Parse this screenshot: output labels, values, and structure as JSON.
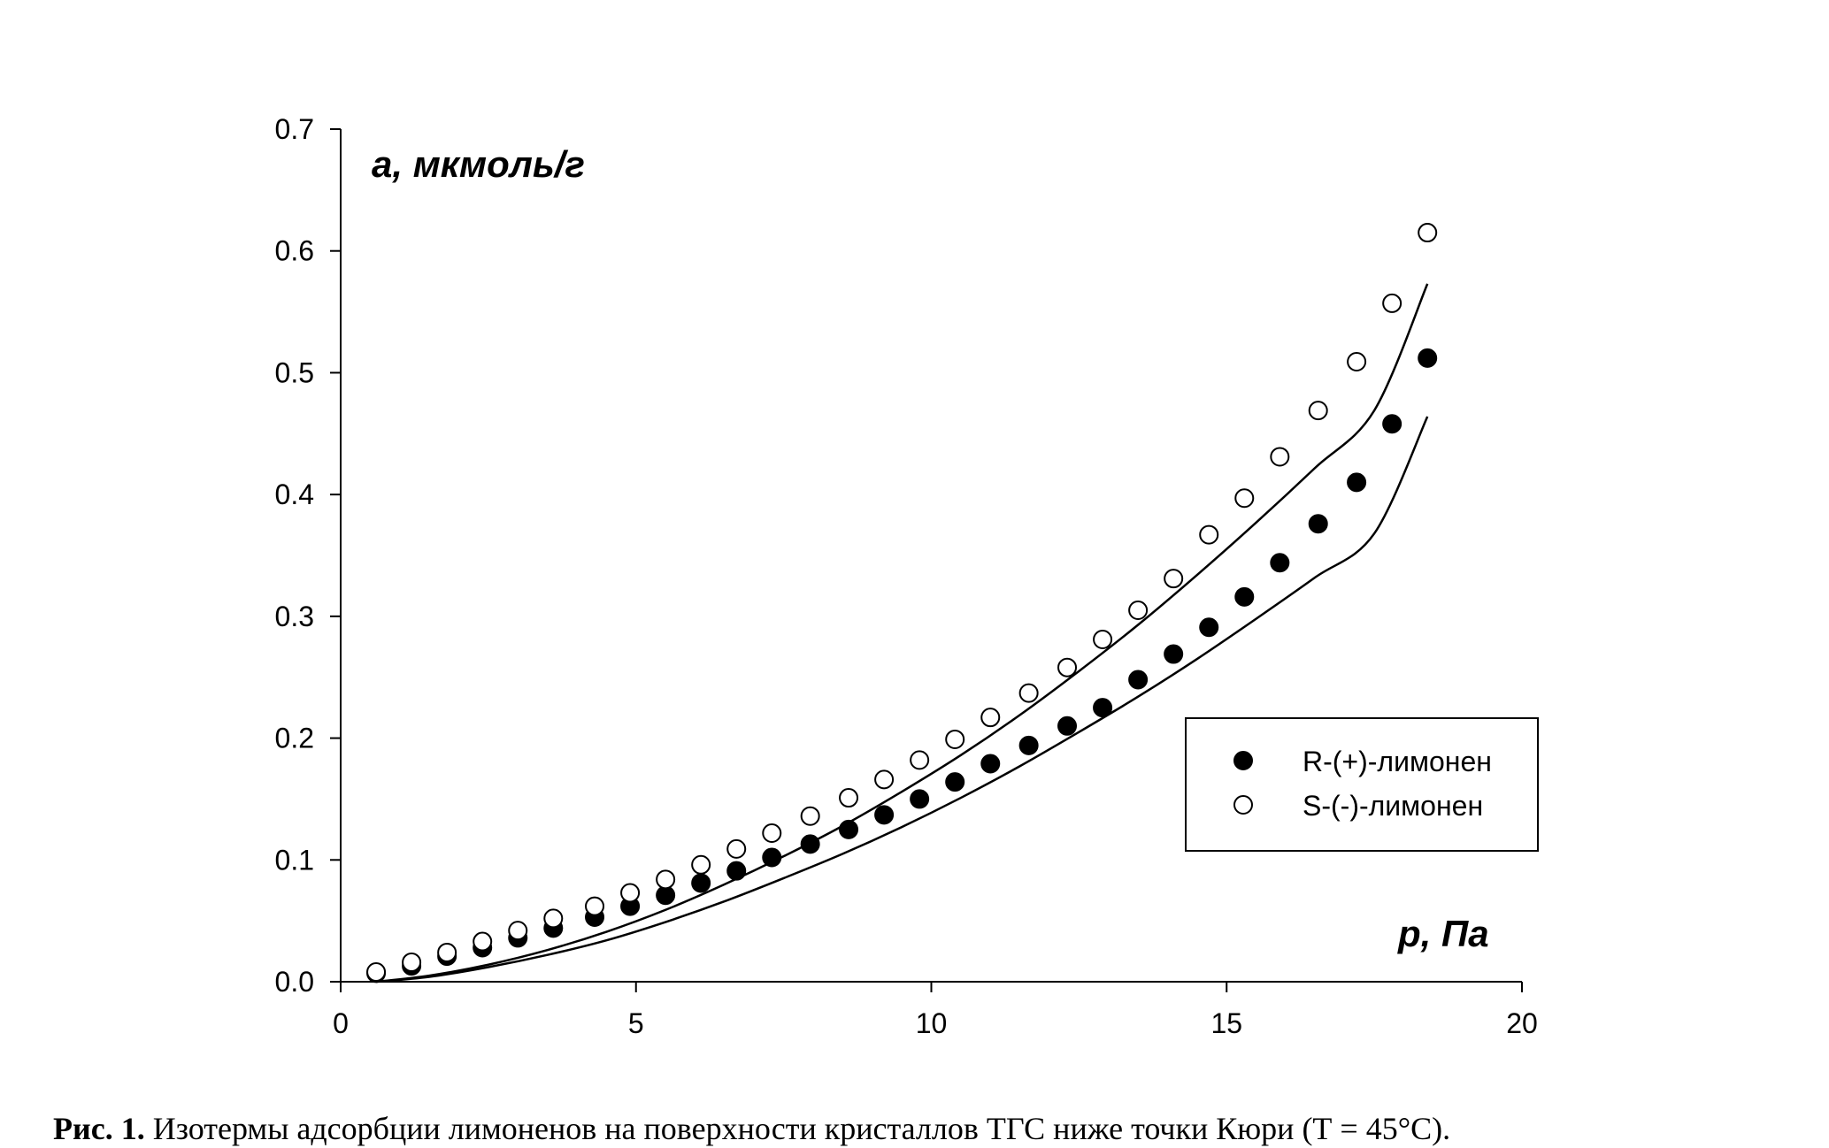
{
  "chart_data": {
    "type": "scatter",
    "title": "",
    "xlabel": "p, Па",
    "ylabel": "a, мкмоль/г",
    "xlim": [
      0,
      20
    ],
    "ylim": [
      0,
      0.7
    ],
    "xticks": [
      0,
      5,
      10,
      15,
      20
    ],
    "xtick_labels": [
      "0",
      "5",
      "10",
      "15",
      "20"
    ],
    "yticks": [
      0,
      0.1,
      0.2,
      0.3,
      0.4,
      0.5,
      0.6,
      0.7
    ],
    "ytick_labels": [
      "0.0",
      "0.1",
      "0.2",
      "0.3",
      "0.4",
      "0.5",
      "0.6",
      "0.7"
    ],
    "grid": false,
    "legend_position": "center-right",
    "series": [
      {
        "name": "R-(+)-лимонен",
        "marker": "filled-circle",
        "color": "#000000",
        "x": [
          0.6,
          1.2,
          1.8,
          2.4,
          3.0,
          3.6,
          4.3,
          4.9,
          5.5,
          6.1,
          6.7,
          7.3,
          7.95,
          8.6,
          9.2,
          9.8,
          10.4,
          11.0,
          11.65,
          12.3,
          12.9,
          13.5,
          14.1,
          14.7,
          15.3,
          15.9,
          16.55,
          17.2,
          17.8,
          18.4
        ],
        "y": [
          0.007,
          0.013,
          0.021,
          0.028,
          0.036,
          0.044,
          0.053,
          0.062,
          0.071,
          0.081,
          0.091,
          0.102,
          0.113,
          0.125,
          0.137,
          0.15,
          0.164,
          0.179,
          0.194,
          0.21,
          0.225,
          0.248,
          0.269,
          0.291,
          0.316,
          0.344,
          0.376,
          0.41,
          0.458,
          0.512
        ]
      },
      {
        "name": "S-(-)-лимонен",
        "marker": "open-circle",
        "color": "#000000",
        "x": [
          0.6,
          1.2,
          1.8,
          2.4,
          3.0,
          3.6,
          4.3,
          4.9,
          5.5,
          6.1,
          6.7,
          7.3,
          7.95,
          8.6,
          9.2,
          9.8,
          10.4,
          11.0,
          11.65,
          12.3,
          12.9,
          13.5,
          14.1,
          14.7,
          15.3,
          15.9,
          16.55,
          17.2,
          17.8,
          18.4
        ],
        "y": [
          0.008,
          0.016,
          0.024,
          0.033,
          0.042,
          0.052,
          0.062,
          0.073,
          0.084,
          0.096,
          0.109,
          0.122,
          0.136,
          0.151,
          0.166,
          0.182,
          0.199,
          0.217,
          0.237,
          0.258,
          0.281,
          0.305,
          0.331,
          0.367,
          0.397,
          0.431,
          0.469,
          0.509,
          0.557,
          0.615
        ]
      }
    ],
    "fit_curves": [
      {
        "name": "R-(+)-лимонен fit",
        "x": [
          0.6,
          1.5,
          2.5,
          3.5,
          4.5,
          5.5,
          6.5,
          7.5,
          8.5,
          9.5,
          10.5,
          11.5,
          12.5,
          13.5,
          14.5,
          15.5,
          16.5,
          17.5,
          18.4
        ],
        "y": [
          0.0,
          0.004,
          0.012,
          0.022,
          0.034,
          0.049,
          0.066,
          0.085,
          0.105,
          0.127,
          0.151,
          0.177,
          0.205,
          0.234,
          0.265,
          0.298,
          0.332,
          0.368,
          0.464
        ]
      },
      {
        "name": "S-(-)-лимонен fit",
        "x": [
          0.6,
          1.5,
          2.5,
          3.5,
          4.5,
          5.5,
          6.5,
          7.5,
          8.5,
          9.5,
          10.5,
          11.5,
          12.5,
          13.5,
          14.5,
          15.5,
          16.5,
          17.5,
          18.4
        ],
        "y": [
          0.0,
          0.005,
          0.014,
          0.026,
          0.041,
          0.059,
          0.08,
          0.103,
          0.128,
          0.156,
          0.186,
          0.219,
          0.255,
          0.293,
          0.334,
          0.377,
          0.422,
          0.469,
          0.573
        ]
      }
    ]
  },
  "caption": {
    "label": "Рис. 1.",
    "text": "Изотермы адсорбции лимоненов на поверхности кристаллов ТГС ниже точки Кюри (Т = 45°С)."
  }
}
